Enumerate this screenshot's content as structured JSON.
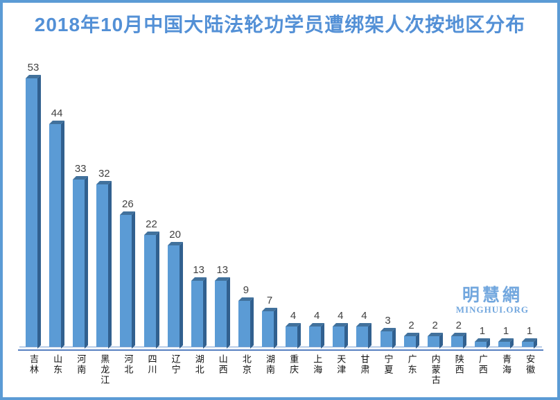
{
  "frame": {
    "border_color": "#5b9bd5"
  },
  "title": {
    "color": "#5390d6"
  },
  "watermark": {
    "cjk": "明慧網",
    "latin": "MINGHUI.ORG",
    "color": "#72a7de"
  },
  "chart_data": {
    "type": "bar",
    "title": "2018年10月中国大陆法轮功学员遭绑架人次按地区分布",
    "categories": [
      "吉林",
      "山东",
      "河南",
      "黑龙江",
      "河北",
      "四川",
      "辽宁",
      "湖北",
      "山西",
      "北京",
      "湖南",
      "重庆",
      "上海",
      "天津",
      "甘肃",
      "宁夏",
      "广东",
      "内蒙古",
      "陕西",
      "广西",
      "青海",
      "安徽"
    ],
    "values": [
      53,
      44,
      33,
      32,
      26,
      22,
      20,
      13,
      13,
      9,
      7,
      4,
      4,
      4,
      4,
      3,
      2,
      2,
      2,
      1,
      1,
      1
    ],
    "xlabel": "",
    "ylabel": "",
    "ylim": [
      0,
      55
    ],
    "grid": false,
    "legend": "none",
    "bar_style": "3d",
    "data_labels": true,
    "colors": {
      "bar_face": "#5b9bd5",
      "bar_top": "#41719c",
      "bar_side": "#31608f",
      "value_label": "#404040",
      "axis_line": "#7aa0d2",
      "base_line": "#567fc0"
    }
  }
}
